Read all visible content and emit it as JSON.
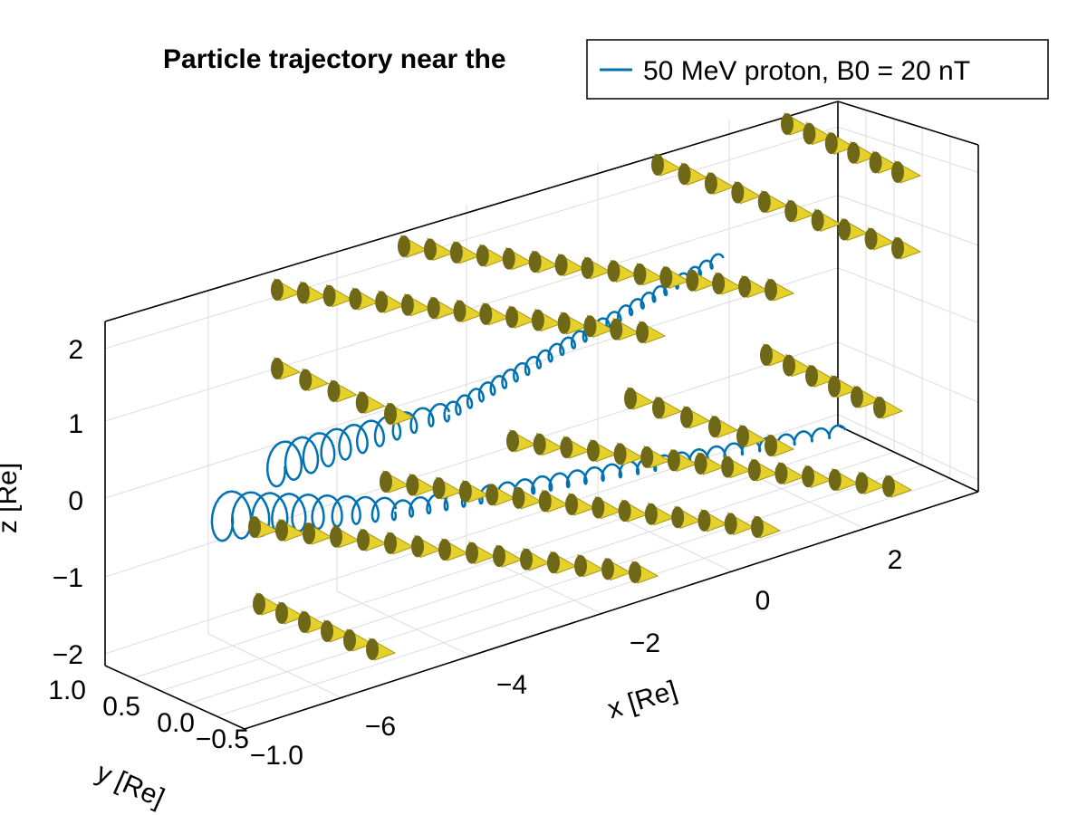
{
  "chart_data": {
    "type": "line",
    "projection": "3d",
    "title": "Particle trajectory near the",
    "xlabel": "x [Re]",
    "ylabel": "y [Re]",
    "zlabel": "z [Re]",
    "x_ticks": [
      "−6",
      "−4",
      "−2",
      "0",
      "2"
    ],
    "y_ticks": [
      "1.0",
      "0.5",
      "0.0",
      "−0.5",
      "−1.0"
    ],
    "z_ticks": [
      "2",
      "1",
      "0",
      "−1",
      "−2"
    ],
    "xlim": [
      -7.5,
      3.5
    ],
    "ylim": [
      -1.2,
      1.2
    ],
    "zlim": [
      -2.2,
      2.3
    ],
    "grid": true,
    "legend": {
      "position": "top-right",
      "entries": [
        "50 MeV proton, B0 = 20 nT"
      ]
    },
    "series": [
      {
        "name": "50 MeV proton, B0 = 20 nT",
        "kind": "helical trajectory",
        "color": "#0072B2"
      }
    ],
    "field_arrows": {
      "kind": "cone glyphs",
      "color": "#e6d12a"
    }
  }
}
